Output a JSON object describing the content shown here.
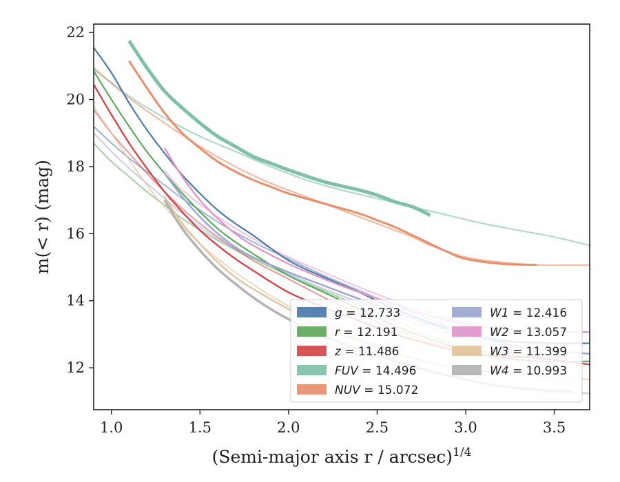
{
  "chart_data": {
    "type": "line",
    "xlabel_main": "(Semi-major axis r / arcsec)",
    "xlabel_exp": "1/4",
    "ylabel": "m(< r) (mag)",
    "xlim": [
      0.9,
      3.7
    ],
    "ylim": [
      22.25,
      10.75
    ],
    "y_inverted": true,
    "x_ticks": [
      1.0,
      1.5,
      2.0,
      2.5,
      3.0,
      3.5
    ],
    "x_tick_labels": [
      "1.0",
      "1.5",
      "2.0",
      "2.5",
      "3.0",
      "3.5"
    ],
    "y_ticks": [
      12,
      14,
      16,
      18,
      20,
      22
    ],
    "y_tick_labels": [
      "12",
      "14",
      "16",
      "18",
      "20",
      "22"
    ],
    "legend_position": "lower-right",
    "legend_columns": 2,
    "series": [
      {
        "band": "g",
        "label_var": "g",
        "label_val": "= 12.733",
        "color": "#4c7aa9",
        "lines": [
          {
            "alpha": 1.0,
            "width": 2.2,
            "x": [
              0.9,
              1.0,
              1.1,
              1.2,
              1.3,
              1.4,
              1.5,
              1.6,
              1.7,
              1.8,
              2.0,
              2.2,
              2.4,
              2.6,
              2.8,
              3.0,
              3.2,
              3.4,
              3.7
            ],
            "y": [
              21.55,
              20.8,
              19.9,
              19.1,
              18.4,
              17.75,
              17.2,
              16.7,
              16.3,
              15.95,
              15.2,
              14.7,
              14.25,
              13.75,
              13.35,
              13.0,
              12.8,
              12.75,
              12.73
            ]
          },
          {
            "alpha": 0.55,
            "width": 2.0,
            "x": [
              0.9,
              1.0,
              1.1,
              1.2,
              1.3,
              1.4,
              1.5,
              1.6,
              1.8,
              2.0,
              2.2,
              2.4,
              2.6,
              2.8,
              3.0,
              3.3
            ],
            "y": [
              19.2,
              18.7,
              18.25,
              17.85,
              17.45,
              17.05,
              16.7,
              16.35,
              15.75,
              15.25,
              14.75,
              14.3,
              13.85,
              13.45,
              13.05,
              12.75
            ]
          }
        ]
      },
      {
        "band": "r",
        "label_var": "r",
        "label_val": "= 12.191",
        "color": "#5fa85c",
        "lines": [
          {
            "alpha": 1.0,
            "width": 2.2,
            "x": [
              0.9,
              1.0,
              1.1,
              1.2,
              1.3,
              1.4,
              1.5,
              1.6,
              1.7,
              1.8,
              2.0,
              2.2,
              2.4,
              2.6,
              2.8,
              3.0,
              3.2,
              3.4,
              3.7
            ],
            "y": [
              20.85,
              20.0,
              19.2,
              18.45,
              17.8,
              17.2,
              16.65,
              16.15,
              15.75,
              15.4,
              14.75,
              14.25,
              13.75,
              13.25,
              12.85,
              12.5,
              12.3,
              12.2,
              12.19
            ]
          },
          {
            "alpha": 0.55,
            "width": 2.0,
            "x": [
              0.9,
              1.0,
              1.1,
              1.2,
              1.3,
              1.4,
              1.6,
              1.8,
              2.0,
              2.2,
              2.4,
              2.6,
              2.8,
              3.0,
              3.3
            ],
            "y": [
              18.7,
              18.15,
              17.7,
              17.25,
              16.85,
              16.45,
              15.8,
              15.25,
              14.75,
              14.3,
              13.85,
              13.4,
              12.95,
              12.6,
              12.3
            ]
          }
        ]
      },
      {
        "band": "z",
        "label_var": "z",
        "label_val": "= 11.486",
        "color": "#d1464b",
        "lines": [
          {
            "alpha": 1.0,
            "width": 2.4,
            "x": [
              0.9,
              1.0,
              1.1,
              1.2,
              1.3,
              1.4,
              1.5,
              1.6,
              1.7,
              1.8,
              2.0,
              2.2,
              2.4,
              2.6,
              2.8,
              3.0,
              3.2,
              3.4,
              3.7
            ],
            "y": [
              20.45,
              19.55,
              18.7,
              17.95,
              17.25,
              16.65,
              16.1,
              15.65,
              15.25,
              14.9,
              14.25,
              13.8,
              13.4,
              13.0,
              12.7,
              12.45,
              12.35,
              12.3,
              12.1
            ]
          },
          {
            "alpha": 0.55,
            "width": 2.0,
            "x": [
              0.9,
              1.0,
              1.1,
              1.2,
              1.3,
              1.4,
              1.5,
              1.6,
              1.8,
              2.0,
              2.2,
              2.4,
              2.6,
              2.8,
              3.0,
              3.3
            ],
            "y": [
              19.7,
              19.0,
              18.4,
              17.8,
              17.25,
              16.75,
              16.3,
              15.9,
              15.2,
              14.65,
              14.1,
              13.6,
              13.15,
              12.75,
              12.45,
              12.3
            ]
          }
        ]
      },
      {
        "band": "FUV",
        "label_var": "FUV",
        "label_val": "= 14.496",
        "color": "#7fc0a8",
        "lines": [
          {
            "alpha": 1.0,
            "width": 5.0,
            "x": [
              1.1,
              1.2,
              1.3,
              1.4,
              1.5,
              1.6,
              1.7,
              1.8,
              1.9,
              2.0,
              2.2,
              2.4,
              2.5,
              2.6,
              2.7,
              2.8
            ],
            "y": [
              21.75,
              20.95,
              20.25,
              19.75,
              19.3,
              18.9,
              18.6,
              18.3,
              18.1,
              17.9,
              17.55,
              17.3,
              17.15,
              16.95,
              16.8,
              16.55
            ]
          },
          {
            "alpha": 0.6,
            "width": 2.2,
            "x": [
              0.9,
              1.1,
              1.3,
              1.5,
              1.7,
              1.9,
              2.1,
              2.3,
              2.5,
              2.7,
              2.9,
              3.1,
              3.3,
              3.5,
              3.7
            ],
            "y": [
              20.9,
              20.1,
              19.45,
              18.9,
              18.45,
              18.0,
              17.6,
              17.3,
              17.05,
              16.8,
              16.55,
              16.3,
              16.1,
              15.9,
              15.65
            ]
          }
        ]
      },
      {
        "band": "NUV",
        "label_var": "NUV",
        "label_val": "= 15.072",
        "color": "#e88e6b",
        "lines": [
          {
            "alpha": 1.0,
            "width": 3.0,
            "x": [
              1.1,
              1.2,
              1.3,
              1.4,
              1.5,
              1.6,
              1.7,
              1.8,
              1.9,
              2.0,
              2.2,
              2.4,
              2.5,
              2.6,
              2.7,
              2.8,
              2.9,
              3.0,
              3.2,
              3.4
            ],
            "y": [
              21.15,
              20.35,
              19.6,
              19.0,
              18.55,
              18.15,
              17.85,
              17.6,
              17.4,
              17.2,
              16.9,
              16.6,
              16.4,
              16.2,
              15.95,
              15.7,
              15.45,
              15.25,
              15.1,
              15.07
            ]
          },
          {
            "alpha": 0.6,
            "width": 2.2,
            "x": [
              0.9,
              1.1,
              1.3,
              1.5,
              1.7,
              1.9,
              2.1,
              2.3,
              2.5,
              2.7,
              2.8,
              3.0,
              3.2,
              3.4,
              3.7
            ],
            "y": [
              20.95,
              20.05,
              19.3,
              18.6,
              18.0,
              17.5,
              17.1,
              16.7,
              16.3,
              15.9,
              15.65,
              15.3,
              15.15,
              15.07,
              15.06
            ]
          }
        ]
      },
      {
        "band": "W1",
        "label_var": "W1",
        "label_val": "= 12.416",
        "color": "#9aa6cf",
        "lines": [
          {
            "alpha": 1.0,
            "width": 2.4,
            "x": [
              1.3,
              1.4,
              1.5,
              1.6,
              1.7,
              1.8,
              2.0,
              2.2,
              2.4,
              2.6,
              2.8,
              3.0,
              3.2,
              3.4,
              3.7
            ],
            "y": [
              17.8,
              17.1,
              16.5,
              16.0,
              15.6,
              15.3,
              14.85,
              14.45,
              14.05,
              13.65,
              13.3,
              13.0,
              12.75,
              12.55,
              12.42
            ]
          },
          {
            "alpha": 0.55,
            "width": 2.0,
            "x": [
              0.9,
              1.0,
              1.1,
              1.2,
              1.3,
              1.4,
              1.6,
              1.8,
              2.0,
              2.2,
              2.4,
              2.6,
              2.8,
              3.0,
              3.3
            ],
            "y": [
              19.0,
              18.45,
              17.95,
              17.5,
              17.05,
              16.6,
              15.85,
              15.3,
              14.8,
              14.35,
              13.95,
              13.55,
              13.2,
              12.9,
              12.6
            ]
          }
        ]
      },
      {
        "band": "W2",
        "label_var": "W2",
        "label_val": "= 13.057",
        "color": "#e096c8",
        "lines": [
          {
            "alpha": 1.0,
            "width": 2.4,
            "x": [
              1.3,
              1.4,
              1.5,
              1.6,
              1.7,
              1.8,
              2.0,
              2.2,
              2.4,
              2.6,
              2.8,
              3.0,
              3.2,
              3.4,
              3.7
            ],
            "y": [
              18.55,
              17.7,
              17.0,
              16.45,
              16.0,
              15.65,
              15.1,
              14.65,
              14.25,
              13.9,
              13.55,
              13.3,
              13.15,
              13.1,
              13.06
            ]
          },
          {
            "alpha": 0.55,
            "width": 2.0,
            "x": [
              1.3,
              1.4,
              1.6,
              1.8,
              2.0,
              2.2,
              2.4,
              2.6,
              2.8,
              3.0,
              3.3
            ],
            "y": [
              17.9,
              17.3,
              16.5,
              15.85,
              15.3,
              14.85,
              14.4,
              14.0,
              13.65,
              13.35,
              13.15
            ]
          }
        ]
      },
      {
        "band": "W3",
        "label_var": "W3",
        "label_val": "= 11.399",
        "color": "#e3c39e",
        "lines": [
          {
            "alpha": 1.0,
            "width": 2.4,
            "x": [
              1.3,
              1.4,
              1.5,
              1.6,
              1.7,
              1.8,
              2.0,
              2.2,
              2.4,
              2.6,
              2.8,
              3.0,
              3.2,
              3.4
            ],
            "y": [
              17.1,
              16.3,
              15.7,
              15.15,
              14.7,
              14.35,
              13.75,
              13.2,
              12.8,
              12.45,
              12.15,
              11.95,
              11.85,
              11.82
            ]
          },
          {
            "alpha": 0.6,
            "width": 2.2,
            "x": [
              0.9,
              1.0,
              1.1,
              1.2,
              1.3,
              1.5,
              1.7,
              1.9,
              2.1,
              2.3,
              2.5,
              2.7,
              2.9,
              3.1,
              3.3,
              3.5,
              3.7
            ],
            "y": [
              19.8,
              19.0,
              18.2,
              17.45,
              16.8,
              15.7,
              14.85,
              14.15,
              13.55,
              13.05,
              12.65,
              12.3,
              12.05,
              11.9,
              11.8,
              11.7,
              11.65
            ]
          }
        ]
      },
      {
        "band": "W4",
        "label_var": "W4",
        "label_val": "= 10.993",
        "color": "#b3b3b3",
        "lines": [
          {
            "alpha": 1.0,
            "width": 3.5,
            "x": [
              1.3,
              1.4,
              1.5,
              1.6,
              1.7,
              1.8,
              1.9,
              2.0,
              2.2,
              2.4,
              2.6,
              2.8,
              3.0,
              3.2,
              3.4,
              3.6
            ],
            "y": [
              17.0,
              16.15,
              15.5,
              14.95,
              14.5,
              14.1,
              13.75,
              13.45,
              12.95,
              12.55,
              12.2,
              11.9,
              11.65,
              11.45,
              11.35,
              11.3
            ]
          },
          {
            "alpha": 0.6,
            "width": 2.4,
            "x": [
              3.4,
              3.5,
              3.6,
              3.7
            ],
            "y": [
              11.3,
              11.27,
              11.25,
              11.24
            ]
          }
        ]
      }
    ]
  }
}
